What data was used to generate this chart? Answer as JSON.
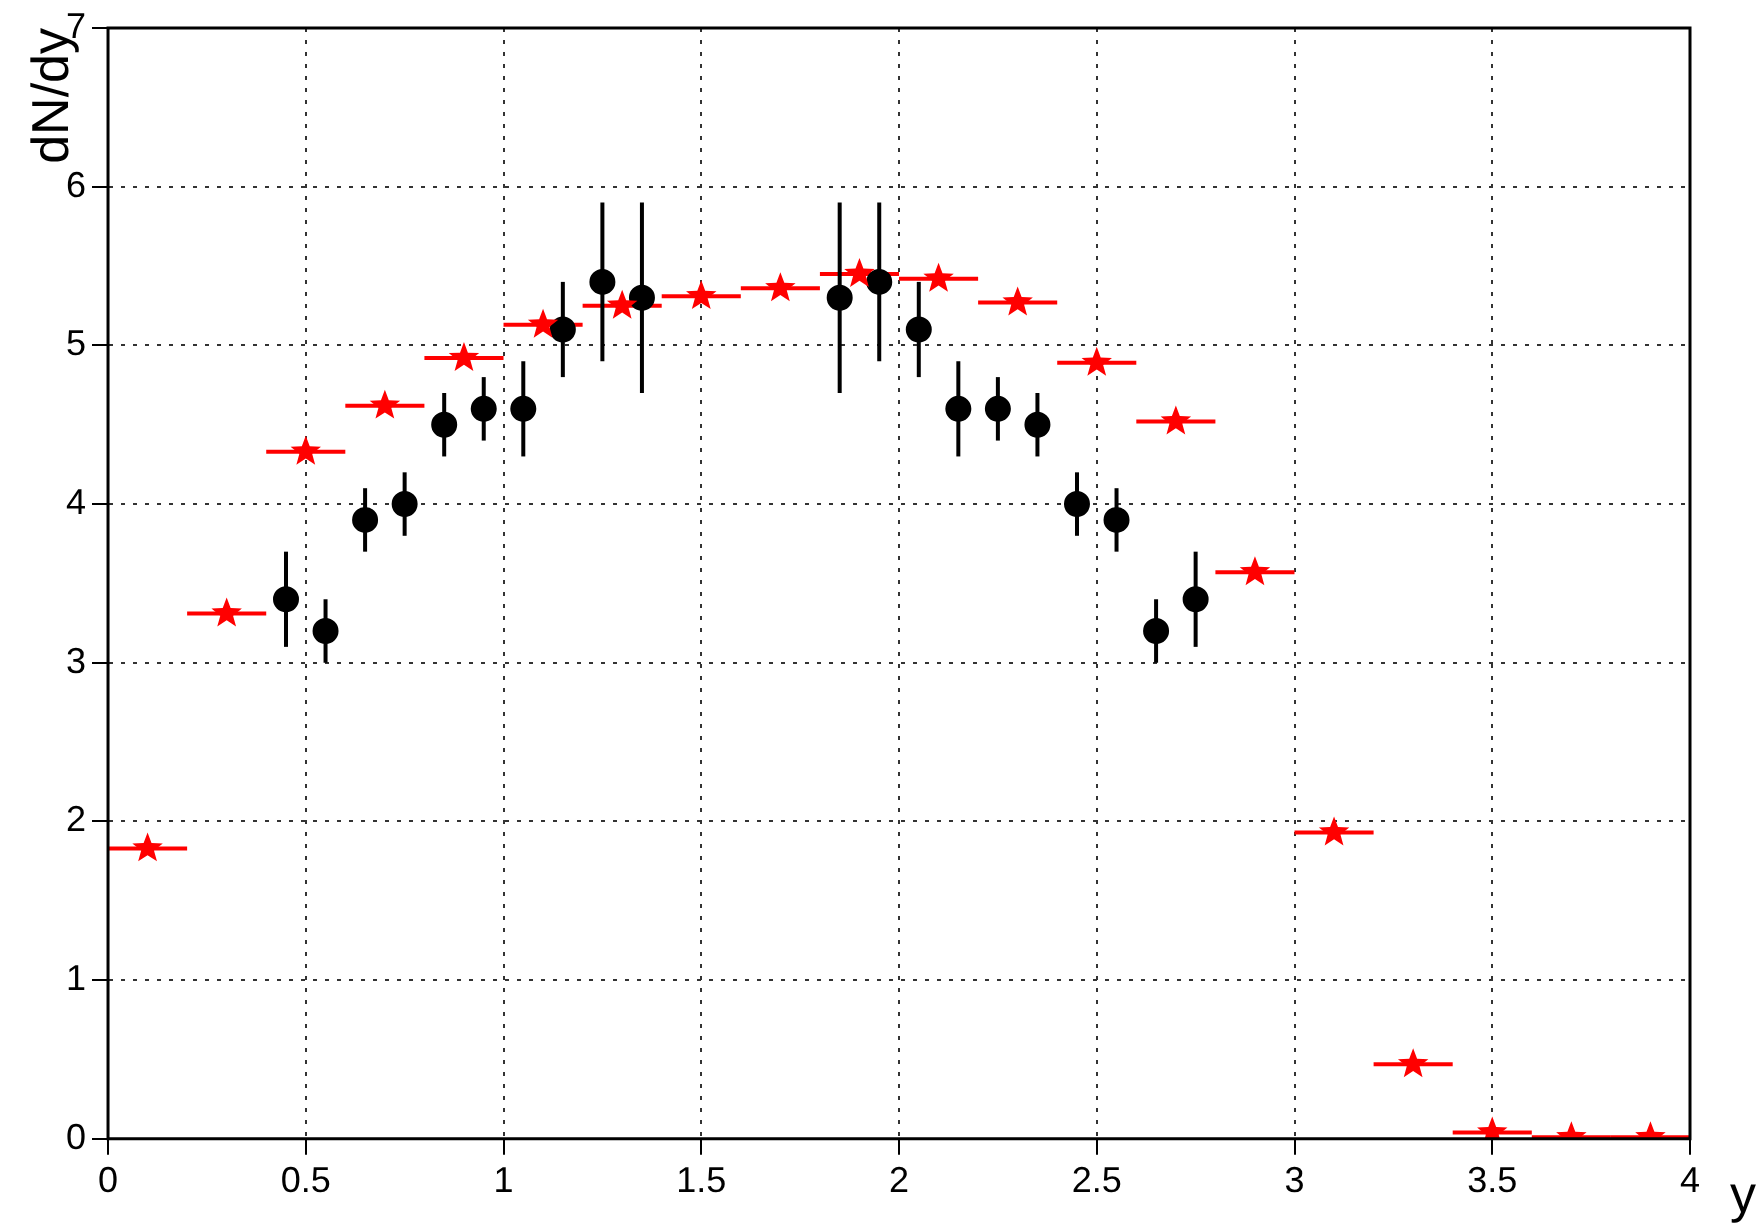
{
  "chart_data": {
    "type": "scatter",
    "xlabel": "y",
    "ylabel": "dN/dy",
    "xlim": [
      0,
      4
    ],
    "xticks": [
      0,
      0.5,
      1,
      1.5,
      2,
      2.5,
      3,
      3.5,
      4
    ],
    "ylim": [
      0,
      7
    ],
    "yticks": [
      0,
      1,
      2,
      3,
      4,
      5,
      6,
      7
    ],
    "grid": true,
    "legend": false,
    "series": [
      {
        "color": "#ff0000",
        "marker": "star",
        "x": [
          0.1,
          0.3,
          0.5,
          0.7,
          0.9,
          1.1,
          1.3,
          1.5,
          1.7,
          1.9,
          2.1,
          2.3,
          2.5,
          2.7,
          2.9,
          3.1,
          3.3,
          3.5,
          3.7,
          3.9
        ],
        "values": [
          1.83,
          3.31,
          4.33,
          4.62,
          4.92,
          5.13,
          5.25,
          5.31,
          5.36,
          5.45,
          5.42,
          5.27,
          4.89,
          4.52,
          3.57,
          1.93,
          0.47,
          0.04,
          0.01,
          0.01
        ],
        "xerrors": [
          0.1,
          0.1,
          0.1,
          0.1,
          0.1,
          0.1,
          0.1,
          0.1,
          0.1,
          0.1,
          0.1,
          0.1,
          0.1,
          0.1,
          0.1,
          0.1,
          0.1,
          0.1,
          0.1,
          0.1
        ]
      },
      {
        "color": "#000000",
        "marker": "circle",
        "x": [
          0.45,
          0.55,
          0.65,
          0.75,
          0.85,
          0.95,
          1.05,
          1.15,
          1.25,
          1.35
        ],
        "values": [
          3.4,
          3.2,
          3.9,
          4.0,
          4.5,
          4.6,
          4.6,
          5.1,
          5.4,
          5.3
        ],
        "errors": [
          0.3,
          0.2,
          0.2,
          0.2,
          0.2,
          0.2,
          0.3,
          0.3,
          0.5,
          0.6
        ]
      },
      {
        "color": "#000000",
        "marker": "circle",
        "x": [
          1.85,
          1.95,
          2.05,
          2.15,
          2.25,
          2.35,
          2.45,
          2.55,
          2.65,
          2.75
        ],
        "values": [
          5.3,
          5.4,
          5.1,
          4.6,
          4.6,
          4.5,
          4.0,
          3.9,
          3.2,
          3.4
        ],
        "errors": [
          0.6,
          0.5,
          0.3,
          0.3,
          0.2,
          0.2,
          0.2,
          0.2,
          0.2,
          0.3
        ]
      }
    ]
  }
}
